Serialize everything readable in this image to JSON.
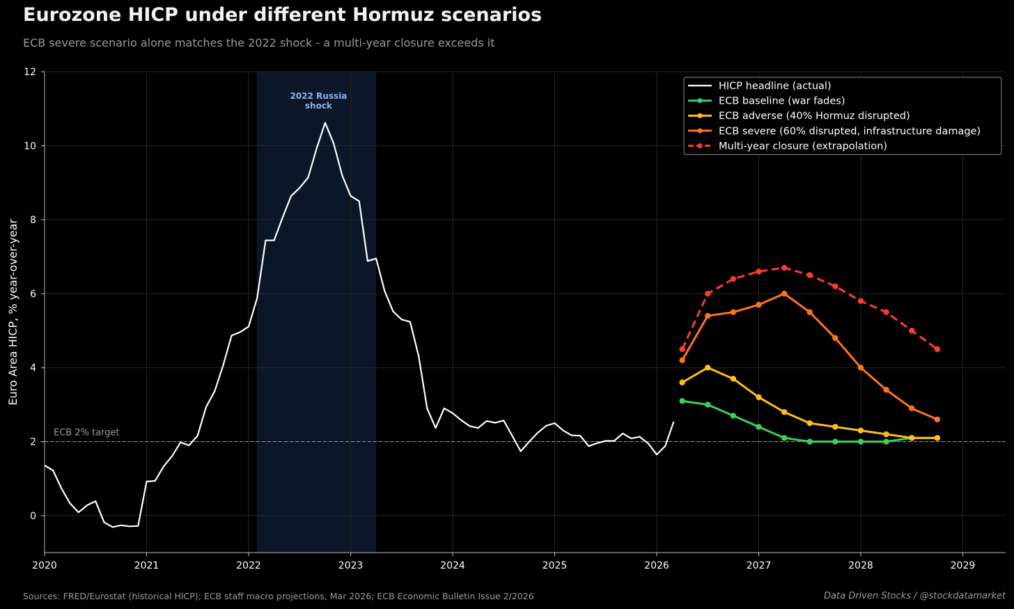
{
  "header": {
    "title": "Eurozone HICP under different Hormuz scenarios",
    "subtitle": "ECB severe scenario alone matches the 2022 shock - a multi-year closure exceeds it"
  },
  "footer": {
    "source": "Sources: FRED/Eurostat (historical HICP); ECB staff macro projections, Mar 2026; ECB Economic Bulletin Issue 2/2026",
    "credit": "Data Driven Stocks  /  @stockdatamarket"
  },
  "colors": {
    "background": "#000000",
    "grid": "#262626",
    "actual": "#ffffff",
    "baseline": "#3ccf5a",
    "adverse": "#ffbf1a",
    "severe": "#ff7420",
    "closure": "#ff3b30",
    "shock_band": "#0b1628",
    "shock_label": "#8fb3e8",
    "target_line": "#9a9a9a"
  },
  "chart_data": {
    "type": "line",
    "ylabel": "Euro Area HICP, % year-over-year",
    "xlim": [
      2020.0,
      2029.42
    ],
    "ylim": [
      -1,
      12
    ],
    "yticks": [
      "0",
      "2",
      "4",
      "6",
      "8",
      "10",
      "12"
    ],
    "xticks": [
      "2020",
      "2021",
      "2022",
      "2023",
      "2024",
      "2025",
      "2026",
      "2027",
      "2028",
      "2029"
    ],
    "grid": true,
    "legend_position": "top-right",
    "shaded_region": {
      "x": [
        2022.08,
        2023.25
      ],
      "label_lines": [
        "2022 Russia",
        "shock"
      ]
    },
    "reference_line": {
      "y": 2,
      "label": "ECB 2% target"
    },
    "series": [
      {
        "name": "HICP headline (actual)",
        "key": "actual",
        "style": "solid",
        "markers": false,
        "start": "2020-01",
        "values": [
          1.36,
          1.22,
          0.73,
          0.33,
          0.09,
          0.28,
          0.39,
          -0.18,
          -0.31,
          -0.26,
          -0.29,
          -0.28,
          0.92,
          0.94,
          1.33,
          1.61,
          1.98,
          1.9,
          2.16,
          2.94,
          3.36,
          4.06,
          4.87,
          4.96,
          5.11,
          5.88,
          7.44,
          7.44,
          8.06,
          8.64,
          8.86,
          9.14,
          9.93,
          10.62,
          10.06,
          9.2,
          8.64,
          8.5,
          6.88,
          6.95,
          6.07,
          5.52,
          5.3,
          5.24,
          4.31,
          2.89,
          2.37,
          2.9,
          2.77,
          2.58,
          2.42,
          2.37,
          2.56,
          2.51,
          2.57,
          2.16,
          1.74,
          2.0,
          2.24,
          2.43,
          2.5,
          2.3,
          2.17,
          2.16,
          1.88,
          1.96,
          2.02,
          2.02,
          2.22,
          2.09,
          2.13,
          1.95,
          1.65,
          1.88,
          2.54
        ]
      },
      {
        "name": "ECB baseline (war fades)",
        "key": "baseline",
        "style": "solid",
        "markers": true,
        "x": [
          2026.25,
          2026.5,
          2026.75,
          2027.0,
          2027.25,
          2027.5,
          2027.75,
          2028.0,
          2028.25,
          2028.5,
          2028.75
        ],
        "values": [
          3.1,
          3.0,
          2.7,
          2.4,
          2.1,
          2.0,
          2.0,
          2.0,
          2.0,
          2.1,
          2.1
        ]
      },
      {
        "name": "ECB adverse (40% Hormuz disrupted)",
        "key": "adverse",
        "style": "solid",
        "markers": true,
        "x": [
          2026.25,
          2026.5,
          2026.75,
          2027.0,
          2027.25,
          2027.5,
          2027.75,
          2028.0,
          2028.25,
          2028.5,
          2028.75
        ],
        "values": [
          3.6,
          4.0,
          3.7,
          3.2,
          2.8,
          2.5,
          2.4,
          2.3,
          2.2,
          2.1,
          2.1
        ]
      },
      {
        "name": "ECB severe (60% disrupted, infrastructure damage)",
        "key": "severe",
        "style": "solid",
        "markers": true,
        "x": [
          2026.25,
          2026.5,
          2026.75,
          2027.0,
          2027.25,
          2027.5,
          2027.75,
          2028.0,
          2028.25,
          2028.5,
          2028.75
        ],
        "values": [
          4.2,
          5.4,
          5.5,
          5.7,
          6.0,
          5.5,
          4.8,
          4.0,
          3.4,
          2.9,
          2.6
        ]
      },
      {
        "name": "Multi-year closure (extrapolation)",
        "key": "closure",
        "style": "dashed",
        "markers": true,
        "x": [
          2026.25,
          2026.5,
          2026.75,
          2027.0,
          2027.25,
          2027.5,
          2027.75,
          2028.0,
          2028.25,
          2028.5,
          2028.75
        ],
        "values": [
          4.5,
          6.0,
          6.4,
          6.6,
          6.7,
          6.5,
          6.2,
          5.8,
          5.5,
          5.0,
          4.5
        ]
      }
    ]
  }
}
